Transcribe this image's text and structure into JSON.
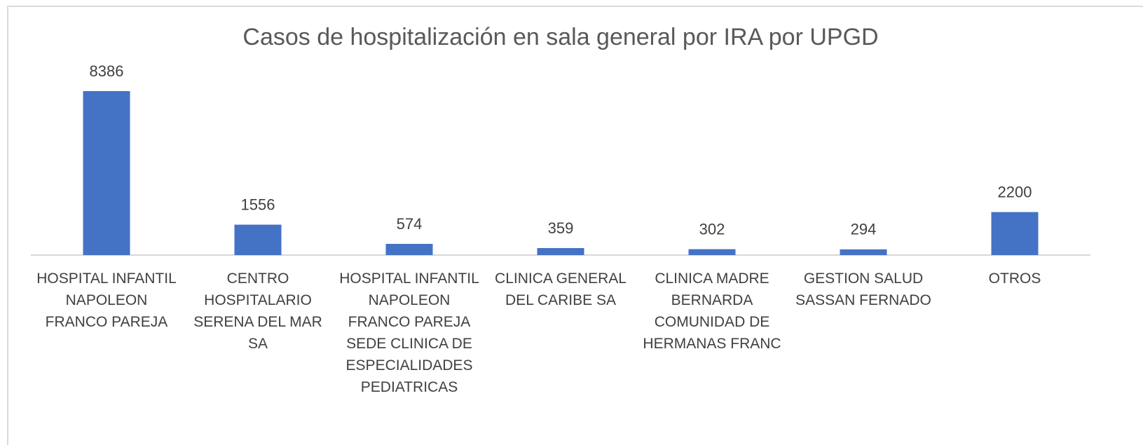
{
  "chart_data": {
    "type": "bar",
    "title": "Casos de hospitalización en sala general por IRA por UPGD",
    "categories": [
      "HOSPITAL INFANTIL NAPOLEON FRANCO PAREJA",
      "CENTRO HOSPITALARIO SERENA DEL MAR SA",
      "HOSPITAL INFANTIL NAPOLEON FRANCO PAREJA SEDE CLINICA DE ESPECIALIDADES PEDIATRICAS",
      "CLINICA GENERAL DEL CARIBE SA",
      "CLINICA MADRE BERNARDA COMUNIDAD DE HERMANAS FRANC",
      "GESTION SALUD SASSAN FERNADO",
      "OTROS"
    ],
    "values": [
      8386,
      1556,
      574,
      359,
      302,
      294,
      2200
    ],
    "color": "#4472c4"
  }
}
